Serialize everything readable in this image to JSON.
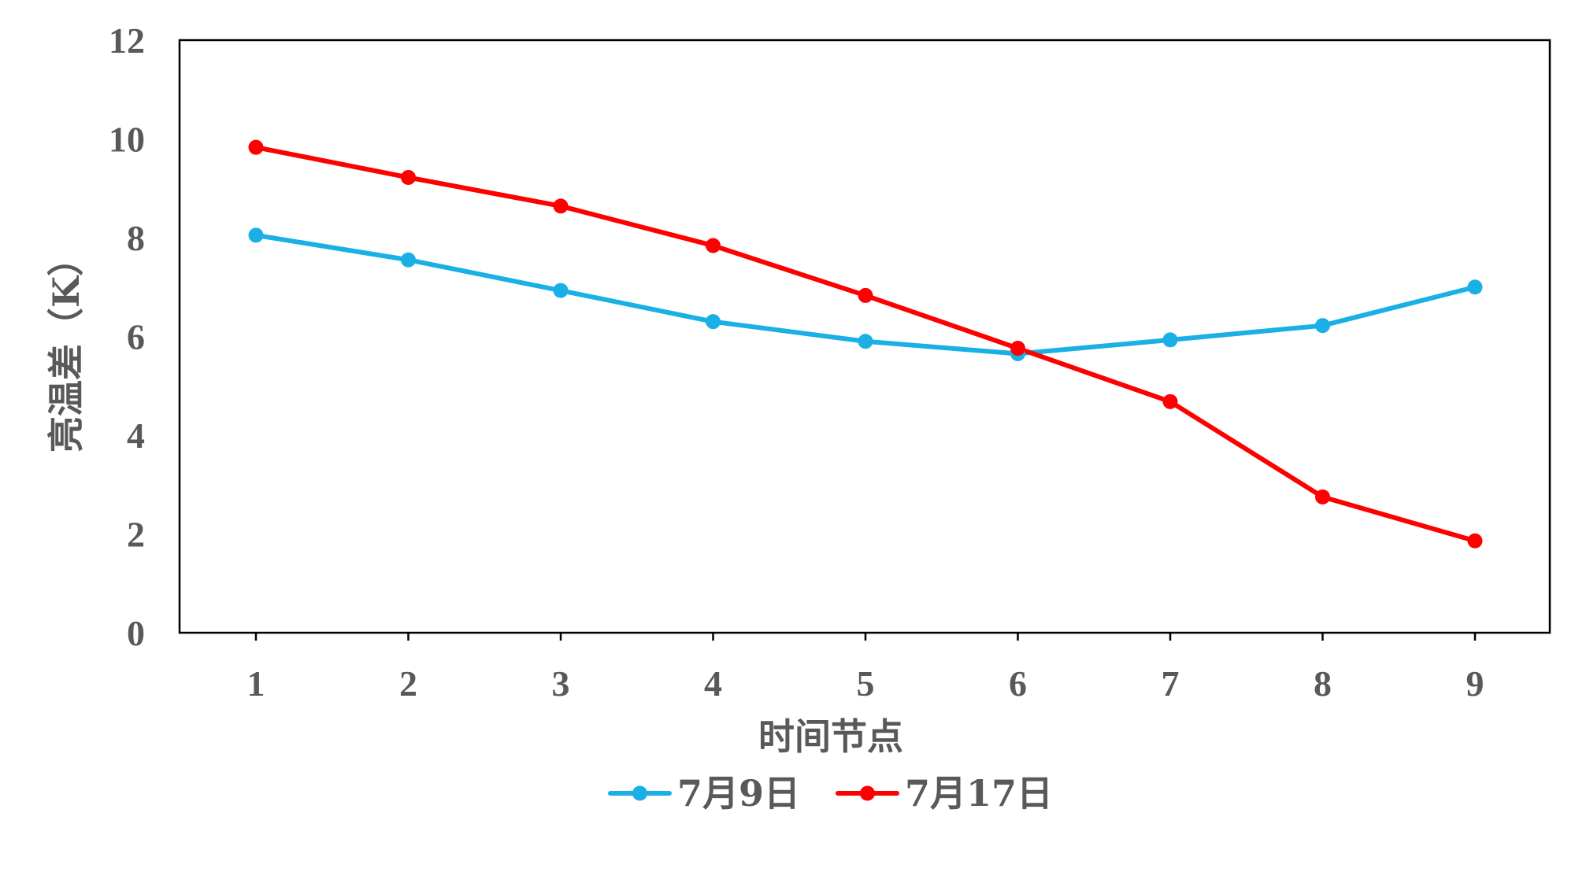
{
  "chart_data": {
    "type": "line",
    "title": "",
    "xlabel": "时间节点",
    "ylabel": "亮温差（K）",
    "categories": [
      "1",
      "2",
      "3",
      "4",
      "5",
      "6",
      "7",
      "8",
      "9"
    ],
    "x": [
      1,
      2,
      3,
      4,
      5,
      6,
      7,
      8,
      9
    ],
    "ylim": [
      0,
      12
    ],
    "yticks": [
      "0",
      "2",
      "4",
      "6",
      "8",
      "10",
      "12"
    ],
    "grid": false,
    "legend_position": "bottom",
    "series": [
      {
        "name": "7月9日",
        "color": "#1ab0e6",
        "values": [
          8.05,
          7.55,
          6.93,
          6.3,
          5.9,
          5.65,
          5.93,
          6.22,
          7.0
        ]
      },
      {
        "name": "7月17日",
        "color": "#ff0000",
        "values": [
          9.83,
          9.22,
          8.64,
          7.84,
          6.83,
          5.76,
          4.68,
          2.75,
          1.86
        ]
      }
    ]
  }
}
